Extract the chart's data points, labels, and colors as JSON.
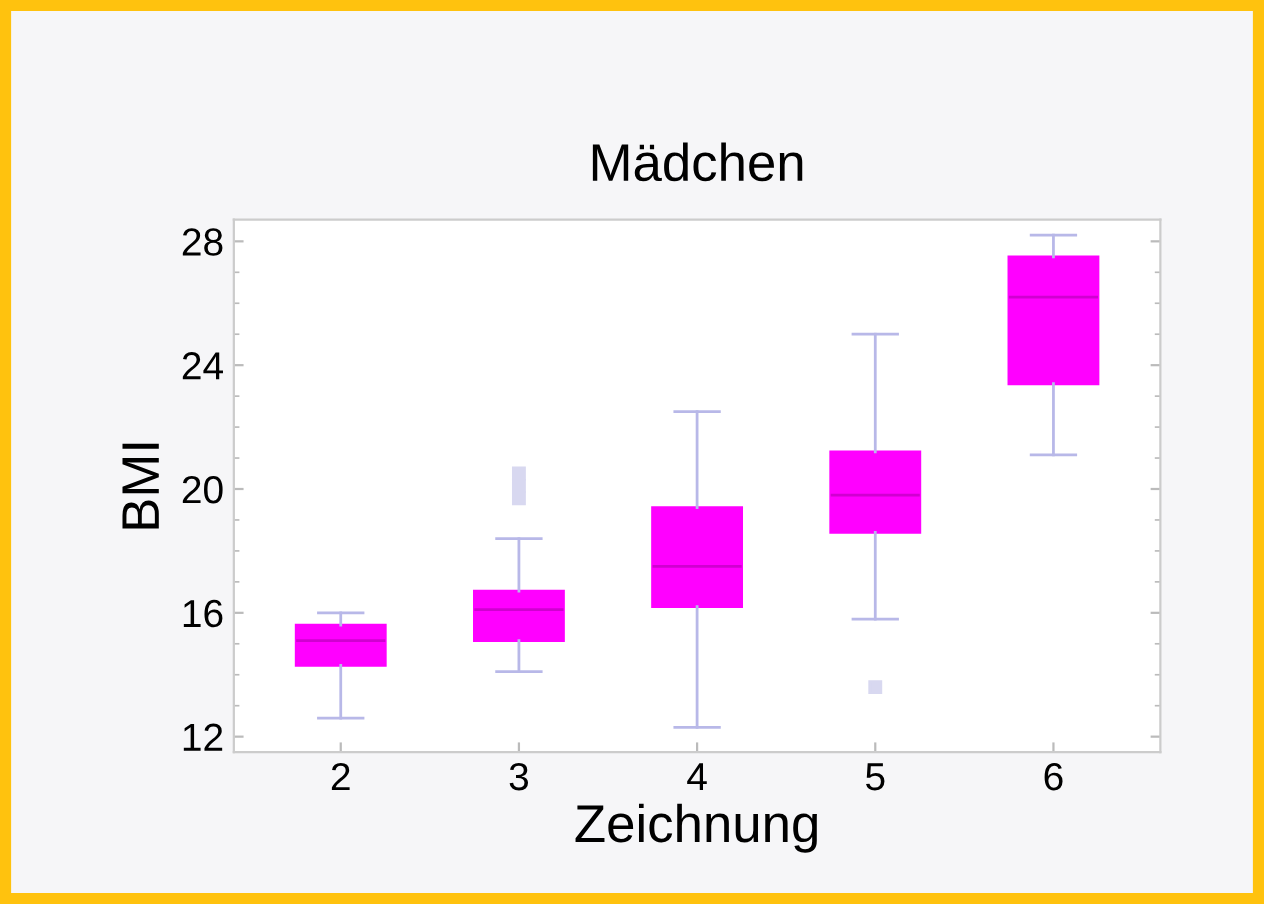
{
  "chart_data": {
    "type": "box",
    "title": "Mädchen",
    "xlabel": "Zeichnung",
    "ylabel": "BMI",
    "categories": [
      "2",
      "3",
      "4",
      "5",
      "6"
    ],
    "boxes": [
      {
        "low": 12.6,
        "q1": 14.3,
        "median": 15.1,
        "q3": 15.6,
        "high": 16.0
      },
      {
        "low": 14.1,
        "q1": 15.1,
        "median": 16.1,
        "q3": 16.7,
        "high": 18.4,
        "outliers": [
          19.7,
          20.1,
          20.5
        ]
      },
      {
        "low": 12.3,
        "q1": 16.2,
        "median": 17.5,
        "q3": 19.4,
        "high": 22.5
      },
      {
        "low": 15.8,
        "q1": 18.6,
        "median": 19.8,
        "q3": 21.2,
        "high": 25.0,
        "outliers": [
          13.6
        ]
      },
      {
        "low": 21.1,
        "q1": 23.4,
        "median": 26.2,
        "q3": 27.5,
        "high": 28.2
      }
    ],
    "color": "#ff00ff",
    "ylim": [
      11.5,
      28.7
    ],
    "yticks": [
      12,
      16,
      20,
      24,
      28
    ],
    "grid": false
  }
}
